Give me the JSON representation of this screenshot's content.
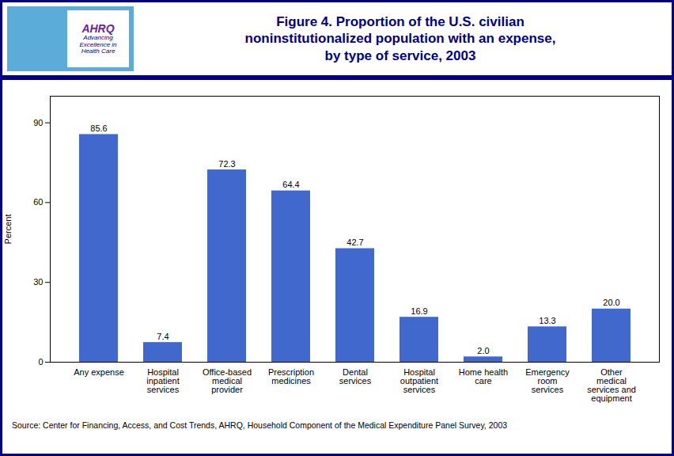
{
  "chart_data": {
    "type": "bar",
    "title": "Figure 4.  Proportion of the U.S. civilian\nnoninstitutionalized population with an expense,\nby type of service, 2003",
    "categories": [
      "Any expense",
      "Hospital\ninpatient\nservices",
      "Office-based\nmedical\nprovider",
      "Prescription\nmedicines",
      "Dental\nservices",
      "Hospital\noutpatient\nservices",
      "Home health\ncare",
      "Emergency\nroom\nservices",
      "Other\nmedical\nservices and\nequipment"
    ],
    "values": [
      85.6,
      7.4,
      72.3,
      64.4,
      42.7,
      16.9,
      2.0,
      13.3,
      20.0
    ],
    "value_labels": [
      "85.6",
      "7.4",
      "72.3",
      "64.4",
      "42.7",
      "16.9",
      "2.0",
      "13.3",
      "20.0"
    ],
    "data_labels": true,
    "color": "#4169CD",
    "y_label": "Percent",
    "ylim": [
      0,
      100
    ],
    "yticks": [
      0,
      30,
      60,
      90
    ],
    "grid": false,
    "annotations": [
      "AHRQ",
      "Advancing\nExcellence in\nHealth Care"
    ],
    "caption": "Source: Center for Financing, Access, and Cost Trends, AHRQ, Household Component of the Medical Expenditure Panel Survey, 2003"
  }
}
